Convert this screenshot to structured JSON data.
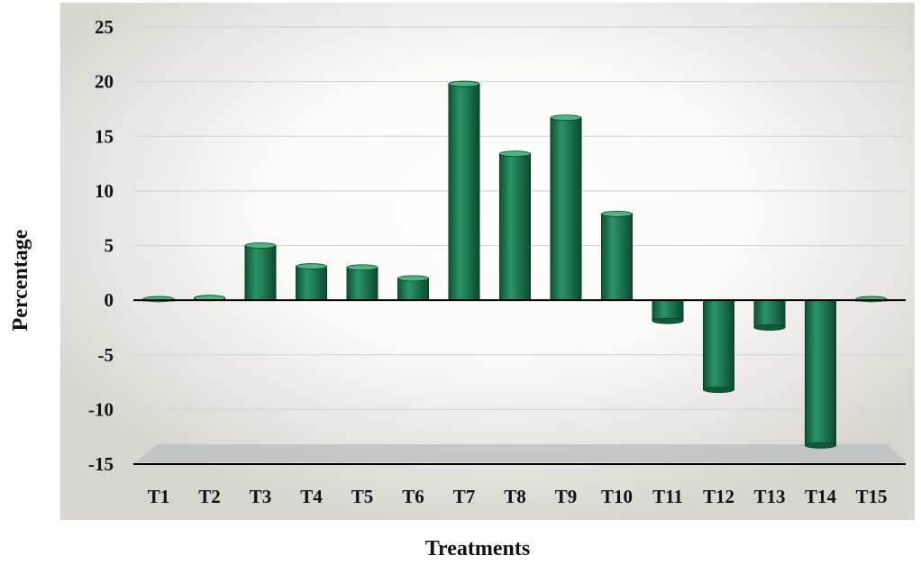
{
  "chart_data": {
    "type": "bar",
    "title": "",
    "xlabel": "Treatments",
    "ylabel": "Percentage",
    "categories": [
      "T1",
      "T2",
      "T3",
      "T4",
      "T5",
      "T6",
      "T7",
      "T8",
      "T9",
      "T10",
      "T11",
      "T12",
      "T13",
      "T14",
      "T15"
    ],
    "series": [
      {
        "values": [
          0.1,
          0.2,
          5.0,
          3.1,
          3.0,
          2.0,
          19.8,
          13.4,
          16.7,
          7.9,
          -1.9,
          -8.2,
          -2.5,
          -13.3,
          0.1
        ]
      }
    ],
    "ylim": [
      -15,
      25
    ],
    "yticks": [
      25,
      20,
      15,
      10,
      5,
      0,
      -5,
      -10,
      -15
    ],
    "grid": true,
    "bar_color": "#1d7a52",
    "background_color": "#e4e1dc"
  }
}
